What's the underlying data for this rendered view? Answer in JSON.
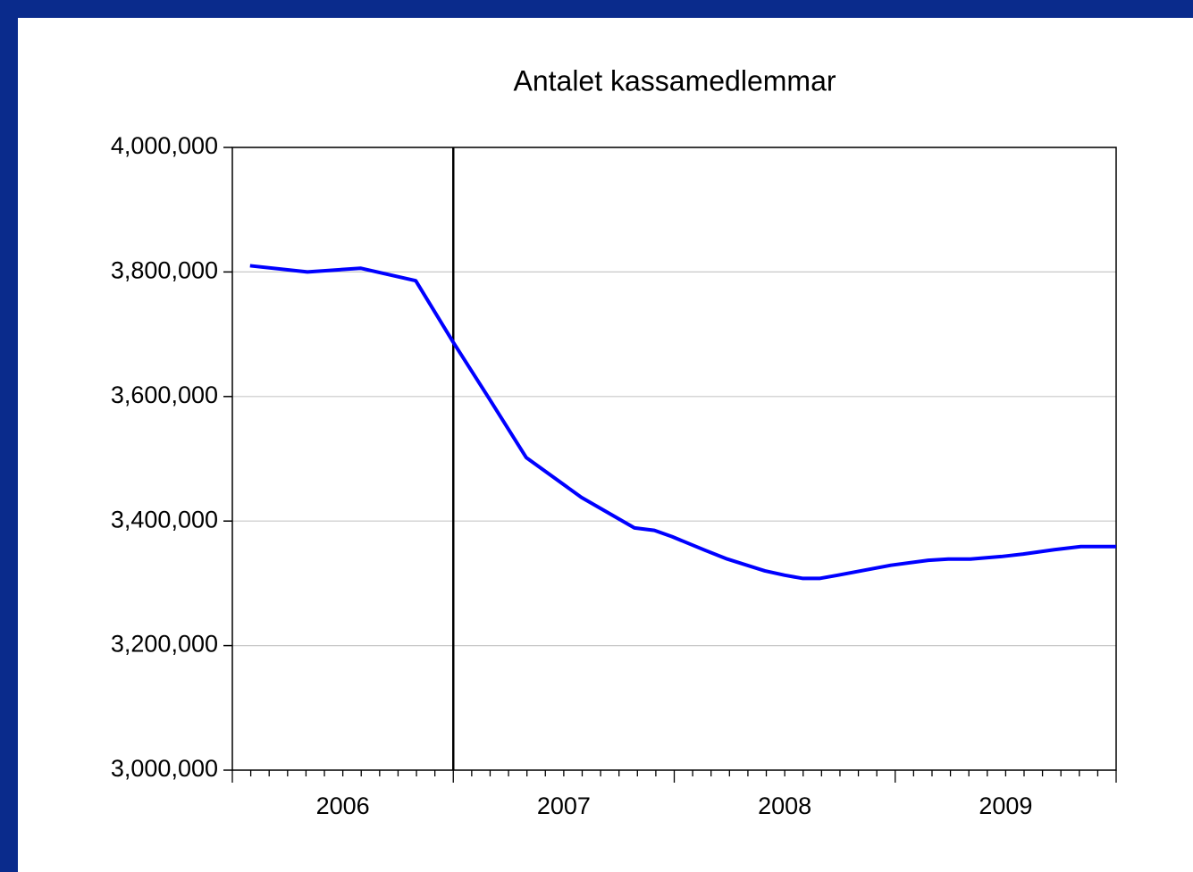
{
  "chart_data": {
    "type": "line",
    "title": "Antalet kassamedlemmar",
    "x": [
      2006.08,
      2006.34,
      2006.58,
      2006.83,
      2007.0,
      2007.16,
      2007.33,
      2007.58,
      2007.82,
      2007.91,
      2007.99,
      2008.14,
      2008.24,
      2008.41,
      2008.5,
      2008.58,
      2008.66,
      2008.74,
      2008.98,
      2009.15,
      2009.24,
      2009.34,
      2009.48,
      2009.58,
      2009.72,
      2009.84,
      2010.0
    ],
    "series": [
      {
        "color": "#0000ff",
        "values": [
          3810000,
          3800000,
          3806000,
          3786000,
          3687000,
          3598000,
          3502000,
          3438000,
          3389000,
          3385000,
          3375000,
          3353000,
          3339000,
          3320000,
          3313000,
          3308000,
          3308000,
          3313000,
          3329000,
          3337000,
          3339000,
          3339000,
          3343000,
          3347000,
          3354000,
          3359000,
          3359000
        ]
      }
    ],
    "xlim": [
      2006,
      2010
    ],
    "xticks": [
      {
        "value": 2006.5,
        "label": "2006"
      },
      {
        "value": 2007.5,
        "label": "2007"
      },
      {
        "value": 2008.5,
        "label": "2008"
      },
      {
        "value": 2009.5,
        "label": "2009"
      }
    ],
    "ylim": [
      3000000,
      4000000
    ],
    "yticks": [
      {
        "value": 3000000,
        "label": "3,000,000"
      },
      {
        "value": 3200000,
        "label": "3,200,000"
      },
      {
        "value": 3400000,
        "label": "3,400,000"
      },
      {
        "value": 3600000,
        "label": "3,600,000"
      },
      {
        "value": 3800000,
        "label": "3,800,000"
      },
      {
        "value": 4000000,
        "label": "4,000,000"
      }
    ],
    "grid": true,
    "vlines": [
      2007
    ]
  }
}
